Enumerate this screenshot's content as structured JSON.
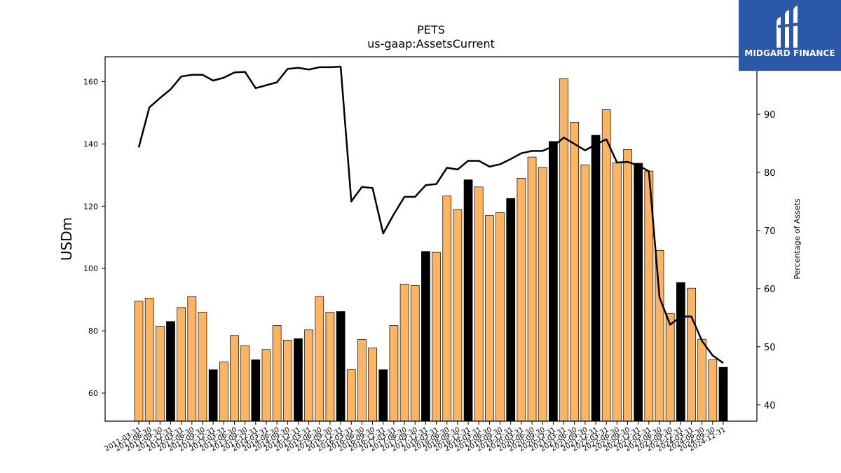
{
  "brand": {
    "name": "MIDGARD FINANCE",
    "logo_icon": "midgard-bars-logo",
    "background_color": "#2b58a8"
  },
  "chart_data": {
    "type": "bar",
    "title": "PETS",
    "subtitle": "us-gaap:AssetsCurrent",
    "ylabel": "USDm",
    "y2label": "Percentage of Assets",
    "ylim": [
      51,
      168
    ],
    "y2lim": [
      37.2,
      99.9
    ],
    "yticks": [
      60,
      80,
      100,
      120,
      140,
      160
    ],
    "y2ticks": [
      40,
      50,
      60,
      70,
      80,
      90
    ],
    "grid": false,
    "bar_color": "#fdb462",
    "bar_highlight_color": "#000000",
    "line_color": "#000000",
    "categories": [
      "2011-03-31",
      "2011-06-30",
      "2011-09-30",
      "2011-12-31",
      "2012-03-31",
      "2012-06-30",
      "2012-09-30",
      "2012-12-31",
      "2013-03-31",
      "2013-06-30",
      "2013-09-30",
      "2013-12-31",
      "2014-03-31",
      "2014-06-30",
      "2014-09-30",
      "2014-12-31",
      "2015-03-31",
      "2015-06-30",
      "2015-09-30",
      "2015-12-31",
      "2016-03-31",
      "2016-06-30",
      "2016-09-30",
      "2016-12-31",
      "2017-03-31",
      "2017-06-30",
      "2017-09-30",
      "2017-12-31",
      "2018-03-31",
      "2018-06-30",
      "2018-09-30",
      "2018-12-31",
      "2019-03-31",
      "2019-06-30",
      "2019-09-30",
      "2019-12-31",
      "2020-03-31",
      "2020-06-30",
      "2020-09-30",
      "2020-12-31",
      "2021-03-31",
      "2021-06-30",
      "2021-09-30",
      "2021-12-31",
      "2022-03-31",
      "2022-06-30",
      "2022-09-30",
      "2022-12-31",
      "2023-03-31",
      "2023-06-30",
      "2023-09-30",
      "2023-12-31",
      "2024-03-31",
      "2024-06-30",
      "2024-09-30",
      "2024-12-31"
    ],
    "series": [
      {
        "kind": "bar",
        "values": [
          89.5,
          90.5,
          81.5,
          83.0,
          87.5,
          91.0,
          86.0,
          67.5,
          70.0,
          78.5,
          75.2,
          70.7,
          74.0,
          81.7,
          77.0,
          77.5,
          80.3,
          91.0,
          86.0,
          86.2,
          67.5,
          77.2,
          74.5,
          67.5,
          81.7,
          95.0,
          94.5,
          105.5,
          105.2,
          123.3,
          119.0,
          128.5,
          126.2,
          117.0,
          118.0,
          122.5,
          129.0,
          135.8,
          132.5,
          140.8,
          161.0,
          147.0,
          133.3,
          142.8,
          151.0,
          134.0,
          138.2,
          133.8,
          131.3,
          105.8,
          85.5,
          95.5,
          93.7,
          77.3,
          70.7,
          68.3
        ],
        "highlight": [
          false,
          false,
          false,
          true,
          false,
          false,
          false,
          true,
          false,
          false,
          false,
          true,
          false,
          false,
          false,
          true,
          false,
          false,
          false,
          true,
          false,
          false,
          false,
          true,
          false,
          false,
          false,
          true,
          false,
          false,
          false,
          true,
          false,
          false,
          false,
          true,
          false,
          false,
          false,
          true,
          false,
          false,
          false,
          true,
          false,
          false,
          false,
          true,
          false,
          false,
          false,
          true,
          false,
          false,
          false,
          true
        ]
      },
      {
        "kind": "line",
        "axis": "right",
        "values": [
          84.3,
          91.2,
          92.8,
          94.3,
          96.5,
          96.8,
          96.8,
          95.8,
          96.3,
          97.2,
          97.3,
          94.5,
          95.0,
          95.5,
          97.8,
          98.0,
          97.7,
          98.1,
          98.1,
          98.2,
          75.0,
          77.5,
          77.3,
          69.5,
          72.8,
          75.8,
          75.8,
          77.8,
          78.0,
          80.8,
          80.5,
          82.0,
          82.0,
          81.0,
          81.4,
          82.3,
          83.3,
          83.7,
          83.7,
          84.5,
          86.0,
          84.9,
          83.8,
          84.8,
          85.7,
          81.7,
          81.8,
          81.2,
          80.2,
          58.5,
          53.8,
          55.2,
          55.2,
          51.0,
          48.5,
          47.2
        ]
      }
    ]
  }
}
